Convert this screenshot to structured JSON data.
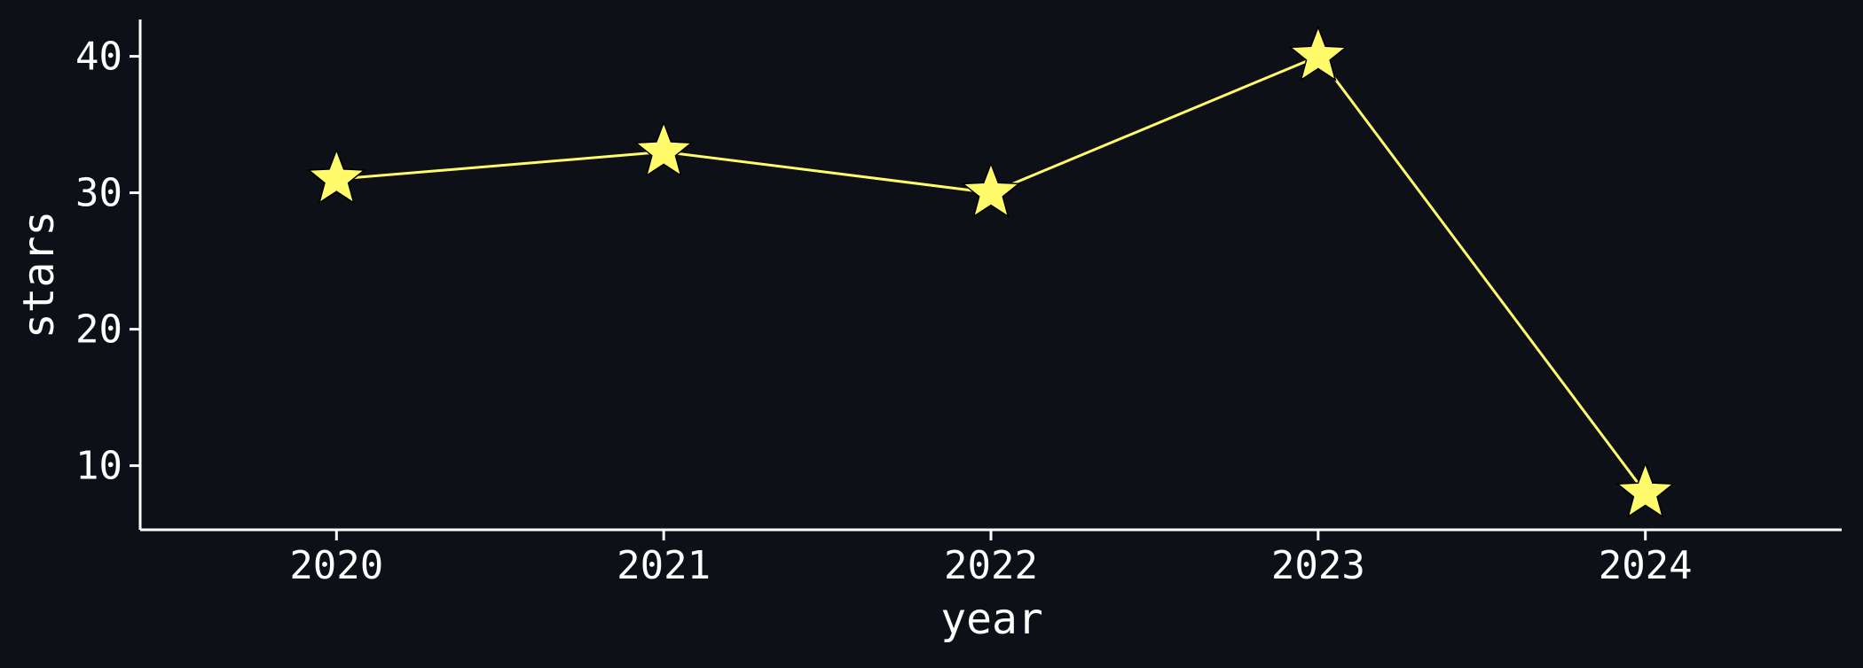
{
  "chart_data": {
    "type": "line",
    "title": "",
    "xlabel": "year",
    "ylabel": "stars",
    "x": [
      2020,
      2021,
      2022,
      2023,
      2024
    ],
    "series": [
      {
        "values": [
          31,
          33,
          30,
          40,
          8
        ]
      }
    ],
    "xlim": [
      2019.4,
      2024.6
    ],
    "ylim": [
      5.3,
      42.7
    ],
    "yticks": [
      10,
      20,
      30,
      40
    ],
    "grid": false,
    "legend": "none",
    "marker": "star",
    "colors": {
      "background": "#0d1017",
      "line": "#fffb6a",
      "marker_fill": "#fffb6a",
      "marker_edge": "#000000",
      "axes": "#ffffff",
      "text": "#ffffff"
    }
  }
}
